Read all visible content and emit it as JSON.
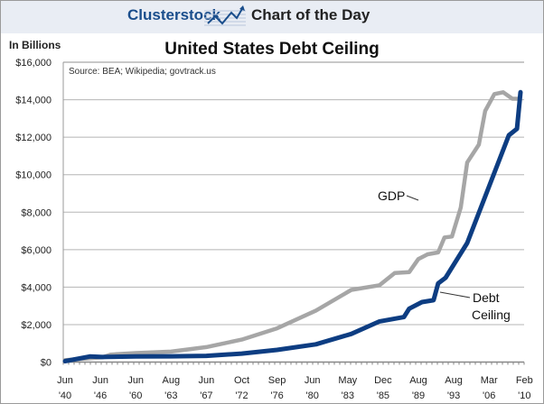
{
  "header": {
    "brand": "Clusterstock",
    "tagline": "Chart of the Day"
  },
  "chart_data": {
    "type": "line",
    "title": "United States Debt Ceiling",
    "ylabel": "In Billions",
    "source": "Source: BEA; Wikipedia; govtrack.us",
    "ylim": [
      0,
      16000
    ],
    "yticks": [
      0,
      2000,
      4000,
      6000,
      8000,
      10000,
      12000,
      14000,
      16000
    ],
    "ytick_labels": [
      "$0",
      "$2,000",
      "$4,000",
      "$6,000",
      "$8,000",
      "$10,000",
      "$12,000",
      "$14,000",
      "$16,000"
    ],
    "categories": [
      [
        "Jun",
        "'40"
      ],
      [
        "Jun",
        "'46"
      ],
      [
        "Jun",
        "'60"
      ],
      [
        "Aug",
        "'63"
      ],
      [
        "Jun",
        "'67"
      ],
      [
        "Oct",
        "'72"
      ],
      [
        "Sep",
        "'76"
      ],
      [
        "Jun",
        "'80"
      ],
      [
        "May",
        "'83"
      ],
      [
        "Dec",
        "'85"
      ],
      [
        "Aug",
        "'89"
      ],
      [
        "Aug",
        "'93"
      ],
      [
        "Mar",
        "'06"
      ],
      [
        "Feb",
        "'10"
      ]
    ],
    "grid": true,
    "series": [
      {
        "name": "GDP",
        "label": "GDP",
        "color": "#a6a6a6",
        "points": [
          [
            0,
            100
          ],
          [
            0.7,
            200
          ],
          [
            1.05,
            250
          ],
          [
            1.3,
            400
          ],
          [
            2,
            480
          ],
          [
            3,
            560
          ],
          [
            4,
            800
          ],
          [
            5,
            1200
          ],
          [
            6,
            1800
          ],
          [
            7.1,
            2750
          ],
          [
            8.1,
            3850
          ],
          [
            8.9,
            4100
          ],
          [
            9.33,
            4750
          ],
          [
            9.74,
            4800
          ],
          [
            10,
            5500
          ],
          [
            10.26,
            5750
          ],
          [
            10.56,
            5850
          ],
          [
            10.74,
            6650
          ],
          [
            10.95,
            6700
          ],
          [
            11.2,
            8250
          ],
          [
            11.38,
            10650
          ],
          [
            11.71,
            11600
          ],
          [
            11.89,
            13400
          ],
          [
            12.15,
            14300
          ],
          [
            12.4,
            14400
          ],
          [
            12.66,
            14050
          ],
          [
            12.86,
            14050
          ]
        ]
      },
      {
        "name": "Debt Ceiling",
        "label_line1": "Debt",
        "label_line2": "Ceiling",
        "color": "#0d3d82",
        "points": [
          [
            0,
            50
          ],
          [
            0.7,
            300
          ],
          [
            1.05,
            270
          ],
          [
            1.2,
            280
          ],
          [
            2,
            300
          ],
          [
            3,
            310
          ],
          [
            4,
            330
          ],
          [
            5,
            450
          ],
          [
            6,
            650
          ],
          [
            7.1,
            950
          ],
          [
            8.1,
            1500
          ],
          [
            8.9,
            2170
          ],
          [
            9.59,
            2400
          ],
          [
            9.74,
            2850
          ],
          [
            10.1,
            3200
          ],
          [
            10.43,
            3300
          ],
          [
            10.56,
            4200
          ],
          [
            10.77,
            4500
          ],
          [
            11.38,
            6350
          ],
          [
            12.56,
            12100
          ],
          [
            12.79,
            12450
          ],
          [
            12.89,
            14400
          ]
        ]
      }
    ]
  }
}
